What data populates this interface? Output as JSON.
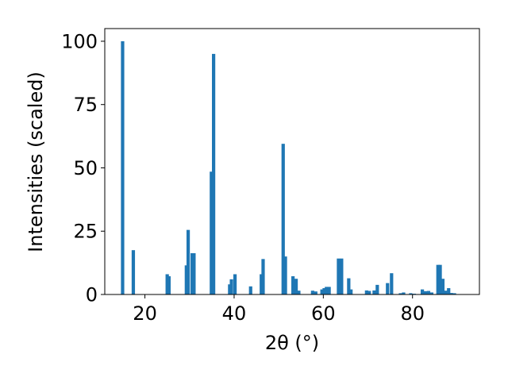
{
  "chart_data": {
    "type": "bar",
    "title": "",
    "xlabel": "2θ (°)",
    "ylabel": "Intensities (scaled)",
    "xlim": [
      11,
      95
    ],
    "ylim": [
      0,
      105
    ],
    "x_ticks": [
      20,
      40,
      60,
      80
    ],
    "y_ticks": [
      0,
      25,
      50,
      75,
      100
    ],
    "grid": false,
    "bar_width": 0.75,
    "color": "#1f77b4",
    "x": [
      15.0,
      17.4,
      25.0,
      25.4,
      29.3,
      29.7,
      30.6,
      31.0,
      34.9,
      35.4,
      39.0,
      39.4,
      40.2,
      43.7,
      46.1,
      46.5,
      51.0,
      51.5,
      53.2,
      53.9,
      54.5,
      57.6,
      58.3,
      59.7,
      60.2,
      60.7,
      61.3,
      63.4,
      64.1,
      65.7,
      66.2,
      69.7,
      70.3,
      71.4,
      72.1,
      74.4,
      75.3,
      77.3,
      78.0,
      79.6,
      80.4,
      82.2,
      82.9,
      83.6,
      84.3,
      85.7,
      86.2,
      86.8,
      87.4,
      88.1,
      88.7,
      89.4
    ],
    "values": [
      100,
      17.5,
      8,
      7.2,
      11.5,
      25.5,
      16.3,
      16.3,
      48.5,
      95,
      4,
      6,
      8,
      3.2,
      8,
      14,
      59.5,
      15,
      7.2,
      6.2,
      1.5,
      1.5,
      1.2,
      2,
      2.5,
      3,
      3,
      14.2,
      14.2,
      6.4,
      2,
      1.6,
      1.4,
      1.6,
      3.8,
      4.5,
      8.4,
      0.5,
      0.8,
      0.5,
      0.3,
      2,
      1.3,
      1.4,
      0.8,
      11.7,
      11.7,
      6.2,
      1.5,
      2.5,
      0.6,
      0.5
    ]
  }
}
